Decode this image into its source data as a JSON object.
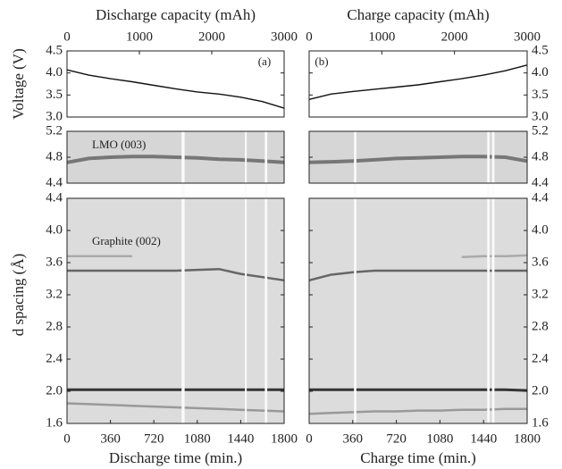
{
  "chart_data": [
    {
      "type": "line",
      "top_axis_label": "Discharge capacity (mAh)",
      "x2lim": [
        0,
        3000
      ],
      "x2ticks": [
        0,
        1000,
        2000,
        3000
      ],
      "xlabel": "Discharge time (min.)",
      "xlim": [
        0,
        1800
      ],
      "xticks": [
        0,
        360,
        720,
        1080,
        1440,
        1800
      ],
      "annotation": "(a)",
      "x": [
        0,
        180,
        360,
        540,
        720,
        900,
        1080,
        1260,
        1440,
        1620,
        1800
      ],
      "voltage": {
        "ylabel": "Voltage (V)",
        "ylim": [
          3,
          4.5
        ],
        "yticks": [
          {
            "value": 3,
            "label": "3.0"
          },
          3.5,
          {
            "value": 4,
            "label": "4.0"
          },
          4.5
        ],
        "values": [
          4.07,
          3.95,
          3.87,
          3.8,
          3.72,
          3.64,
          3.57,
          3.52,
          3.45,
          3.35,
          3.2
        ]
      },
      "lmo": {
        "label": "LMO (003)",
        "ylim": [
          4.4,
          5.2
        ],
        "yticks": [
          4.4,
          4.8,
          5.2
        ],
        "values": [
          4.72,
          4.78,
          4.8,
          4.81,
          4.81,
          4.8,
          4.79,
          4.77,
          4.76,
          4.74,
          4.72
        ]
      },
      "graphite": {
        "label": "Graphite (002)",
        "ylabel": "d spacing (Å)",
        "ylim": [
          1.6,
          4.4
        ],
        "yticks": [
          1.6,
          {
            "value": 2,
            "label": "2.0"
          },
          2.4,
          2.8,
          3.2,
          3.6,
          {
            "value": 4,
            "label": "4.0"
          },
          4.4
        ],
        "series": [
          {
            "values": [
              3.68,
              3.68,
              3.68,
              3.68,
              null,
              null,
              null,
              null,
              null,
              null,
              null
            ]
          },
          {
            "values": [
              3.5,
              3.5,
              3.5,
              3.5,
              3.5,
              3.5,
              3.51,
              3.52,
              3.46,
              3.42,
              3.38
            ]
          },
          {
            "values": [
              2.02,
              2.02,
              2.02,
              2.02,
              2.02,
              2.02,
              2.02,
              2.02,
              2.02,
              2.02,
              2.02
            ]
          },
          {
            "values": [
              1.85,
              1.84,
              1.83,
              1.82,
              1.81,
              1.8,
              1.79,
              1.78,
              1.77,
              1.76,
              1.75
            ]
          }
        ]
      },
      "gaps": [
        [
          950,
          975
        ],
        [
          1475,
          1490
        ],
        [
          1640,
          1660
        ]
      ]
    },
    {
      "type": "line",
      "top_axis_label": "Charge capacity (mAh)",
      "x2lim": [
        0,
        3000
      ],
      "x2ticks": [
        0,
        1000,
        2000,
        3000
      ],
      "xlabel": "Charge time (min.)",
      "xlim": [
        0,
        1800
      ],
      "xticks": [
        0,
        360,
        720,
        1080,
        1440,
        1800
      ],
      "annotation": "(b)",
      "x": [
        0,
        180,
        360,
        540,
        720,
        900,
        1080,
        1260,
        1440,
        1620,
        1800
      ],
      "voltage": {
        "ylim": [
          3,
          4.5
        ],
        "yticks": [
          {
            "value": 3,
            "label": "3.0"
          },
          3.5,
          {
            "value": 4,
            "label": "4.0"
          },
          4.5
        ],
        "values": [
          3.4,
          3.52,
          3.58,
          3.63,
          3.68,
          3.73,
          3.8,
          3.87,
          3.95,
          4.05,
          4.18
        ]
      },
      "lmo": {
        "ylim": [
          4.4,
          5.2
        ],
        "yticks": [
          4.4,
          4.8,
          5.2
        ],
        "values": [
          4.72,
          4.73,
          4.74,
          4.76,
          4.78,
          4.79,
          4.8,
          4.81,
          4.81,
          4.8,
          4.74
        ]
      },
      "graphite": {
        "ylim": [
          1.6,
          4.4
        ],
        "yticks": [
          1.6,
          {
            "value": 2,
            "label": "2.0"
          },
          2.4,
          2.8,
          3.2,
          3.6,
          {
            "value": 4,
            "label": "4.0"
          },
          4.4
        ],
        "series": [
          {
            "values": [
              null,
              null,
              null,
              null,
              null,
              null,
              null,
              3.67,
              3.68,
              3.68,
              3.69
            ]
          },
          {
            "values": [
              3.38,
              3.45,
              3.48,
              3.5,
              3.5,
              3.5,
              3.5,
              3.5,
              3.5,
              3.5,
              3.5
            ]
          },
          {
            "values": [
              2.02,
              2.02,
              2.02,
              2.02,
              2.02,
              2.02,
              2.02,
              2.02,
              2.02,
              2.02,
              2.01
            ]
          },
          {
            "values": [
              1.72,
              1.73,
              1.74,
              1.75,
              1.75,
              1.76,
              1.76,
              1.77,
              1.77,
              1.78,
              1.78
            ]
          }
        ]
      },
      "gaps": [
        [
          370,
          390
        ],
        [
          1470,
          1490
        ],
        [
          1510,
          1530
        ]
      ]
    }
  ]
}
